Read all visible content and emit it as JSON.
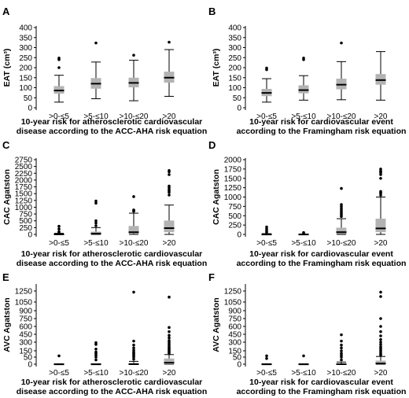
{
  "chart_data": [
    {
      "panel": "A",
      "type": "box",
      "ylabel": "EAT (cm³)",
      "xlabel": "10-year risk for atherosclerotic cardiovascular disease according to the ACC-AHA risk equation",
      "xlabel_lines": [
        "10-year risk for atherosclerotic cardiovascular",
        "disease according to the ACC-AHA risk equation"
      ],
      "categories": [
        ">0-≤5",
        ">5-≤10",
        ">10-≤20",
        ">20"
      ],
      "ylim": [
        0,
        400
      ],
      "yticks": [
        0,
        50,
        100,
        150,
        200,
        250,
        300,
        350,
        400
      ],
      "boxes": [
        {
          "min": 28,
          "q1": 70,
          "median": 86,
          "q3": 108,
          "max": 162,
          "outliers": [
            200,
            240,
            248
          ]
        },
        {
          "min": 45,
          "q1": 95,
          "median": 120,
          "q3": 148,
          "max": 228,
          "outliers": [
            323
          ]
        },
        {
          "min": 35,
          "q1": 102,
          "median": 124,
          "q3": 150,
          "max": 237,
          "outliers": [
            262
          ]
        },
        {
          "min": 57,
          "q1": 125,
          "median": 150,
          "q3": 180,
          "max": 290,
          "outliers": [
            327
          ]
        }
      ]
    },
    {
      "panel": "B",
      "type": "box",
      "ylabel": "EAT (cm³)",
      "xlabel": "10-year risk for cardiovascular event according to the Framingham risk equation",
      "xlabel_lines": [
        "10-year risk for cardiovascular event",
        "according to the Framingham risk equation"
      ],
      "categories": [
        ">0-≤5",
        ">5-≤10",
        ">10-≤20",
        ">20"
      ],
      "ylim": [
        0,
        400
      ],
      "yticks": [
        0,
        50,
        100,
        150,
        200,
        250,
        300,
        350,
        400
      ],
      "boxes": [
        {
          "min": 28,
          "q1": 58,
          "median": 74,
          "q3": 94,
          "max": 145,
          "outliers": [
            190,
            198
          ]
        },
        {
          "min": 38,
          "q1": 72,
          "median": 88,
          "q3": 112,
          "max": 160,
          "outliers": [
            240,
            248
          ]
        },
        {
          "min": 40,
          "q1": 92,
          "median": 115,
          "q3": 145,
          "max": 230,
          "outliers": [
            323
          ]
        },
        {
          "min": 38,
          "q1": 115,
          "median": 138,
          "q3": 168,
          "max": 280,
          "outliers": []
        }
      ]
    },
    {
      "panel": "C",
      "type": "box",
      "ylabel": "CAC Agatston",
      "xlabel": "10-year risk for atherosclerotic cardiovascular disease according to the ACC-AHA risk equation",
      "xlabel_lines": [
        "10-year risk for atherosclerotic cardiovascular",
        "disease according to the ACC-AHA risk equation"
      ],
      "categories": [
        ">0-≤5",
        ">5-≤10",
        ">10-≤20",
        ">20"
      ],
      "ylim": [
        0,
        2750
      ],
      "yticks": [
        0,
        250,
        500,
        750,
        1000,
        1250,
        1500,
        1750,
        2000,
        2250,
        2500,
        2750
      ],
      "boxes": [
        {
          "min": 0,
          "q1": 0,
          "median": 2,
          "q3": 15,
          "max": 40,
          "outliers": [
            70,
            100,
            200,
            300
          ]
        },
        {
          "min": 0,
          "q1": 0,
          "median": 30,
          "q3": 100,
          "max": 250,
          "outliers": [
            320,
            420,
            500,
            1150,
            1230
          ]
        },
        {
          "min": 0,
          "q1": 30,
          "median": 80,
          "q3": 310,
          "max": 780,
          "outliers": [
            850,
            880,
            900,
            1390
          ]
        },
        {
          "min": 0,
          "q1": 80,
          "median": 230,
          "q3": 510,
          "max": 1080,
          "outliers": [
            1450,
            1550,
            1600,
            1650,
            1720,
            1780,
            2200,
            2300,
            2350
          ]
        }
      ]
    },
    {
      "panel": "D",
      "type": "box",
      "ylabel": "CAC Agatston",
      "xlabel": "10-year risk for cardiovascular event according to the Framingham risk equation",
      "xlabel_lines": [
        "10-year risk for cardiovascular event",
        "according to the Framingham risk equation"
      ],
      "categories": [
        ">0-≤5",
        ">5-≤10",
        ">10-≤20",
        ">20"
      ],
      "ylim": [
        0,
        2000
      ],
      "yticks": [
        0,
        250,
        500,
        750,
        1000,
        1250,
        1500,
        1750,
        2000
      ],
      "boxes": [
        {
          "min": 0,
          "q1": 0,
          "median": 0,
          "q3": 5,
          "max": 20,
          "outliers": [
            60,
            100,
            150,
            200
          ]
        },
        {
          "min": 0,
          "q1": 0,
          "median": 0,
          "q3": 3,
          "max": 10,
          "outliers": [
            30,
            50
          ]
        },
        {
          "min": 0,
          "q1": 10,
          "median": 60,
          "q3": 180,
          "max": 420,
          "outliers": [
            480,
            520,
            560,
            600,
            650,
            700,
            750,
            800,
            1230
          ]
        },
        {
          "min": 0,
          "q1": 60,
          "median": 160,
          "q3": 420,
          "max": 1000,
          "outliers": [
            1050,
            1100,
            1120,
            1150,
            1500,
            1600,
            1650,
            1680,
            1700,
            1750
          ]
        }
      ]
    },
    {
      "panel": "E",
      "type": "box",
      "ylabel": "AVC Agatston",
      "xlabel": "10-year risk for atherosclerotic cardiovascular disease according to the ACC-AHA risk equation",
      "xlabel_lines": [
        "10-year risk for atherosclerotic cardiovascular",
        "disease according to the ACC-AHA risk equation"
      ],
      "categories": [
        ">0-≤5",
        ">5-≤10",
        ">10-≤20",
        ">20"
      ],
      "ylim": [
        0,
        1350
      ],
      "yticks": [
        0,
        50,
        150,
        300,
        450,
        600,
        750,
        900,
        1050,
        1250
      ],
      "boxes": [
        {
          "min": 0,
          "q1": 0,
          "median": 0,
          "q3": 0,
          "max": 0,
          "outliers": [
            70
          ]
        },
        {
          "min": 0,
          "q1": 0,
          "median": 0,
          "q3": 0,
          "max": 0,
          "outliers": [
            30,
            50,
            80,
            110,
            130,
            180,
            260,
            290
          ]
        },
        {
          "min": 0,
          "q1": 0,
          "median": 0,
          "q3": 8,
          "max": 20,
          "outliers": [
            35,
            50,
            70,
            90,
            110,
            130,
            160,
            200,
            250,
            320,
            1230
          ]
        },
        {
          "min": 0,
          "q1": 0,
          "median": 10,
          "q3": 40,
          "max": 90,
          "outliers": [
            110,
            130,
            150,
            170,
            190,
            210,
            240,
            270,
            300,
            330,
            380,
            430,
            500,
            580,
            1140
          ]
        }
      ]
    },
    {
      "panel": "F",
      "type": "box",
      "ylabel": "AVC Agatston",
      "xlabel": "10-year risk for cardiovascular event according to the Framingham risk equation",
      "xlabel_lines": [
        "10-year risk for cardiovascular event",
        "according to the Framingham risk equation"
      ],
      "categories": [
        ">0-≤5",
        ">5-≤10",
        ">10-≤20",
        ">20"
      ],
      "ylim": [
        0,
        1350
      ],
      "yticks": [
        0,
        50,
        150,
        300,
        450,
        600,
        750,
        900,
        1050,
        1250
      ],
      "boxes": [
        {
          "min": 0,
          "q1": 0,
          "median": 0,
          "q3": 0,
          "max": 0,
          "outliers": [
            40,
            70
          ]
        },
        {
          "min": 0,
          "q1": 0,
          "median": 0,
          "q3": 0,
          "max": 0,
          "outliers": [
            70
          ]
        },
        {
          "min": 0,
          "q1": 0,
          "median": 0,
          "q3": 5,
          "max": 15,
          "outliers": [
            30,
            50,
            80,
            110,
            150,
            200,
            250,
            320,
            440
          ]
        },
        {
          "min": 0,
          "q1": 0,
          "median": 5,
          "q3": 25,
          "max": 60,
          "outliers": [
            80,
            100,
            130,
            160,
            190,
            220,
            260,
            300,
            350,
            420,
            500,
            600,
            750,
            1150,
            1230
          ]
        }
      ]
    }
  ]
}
